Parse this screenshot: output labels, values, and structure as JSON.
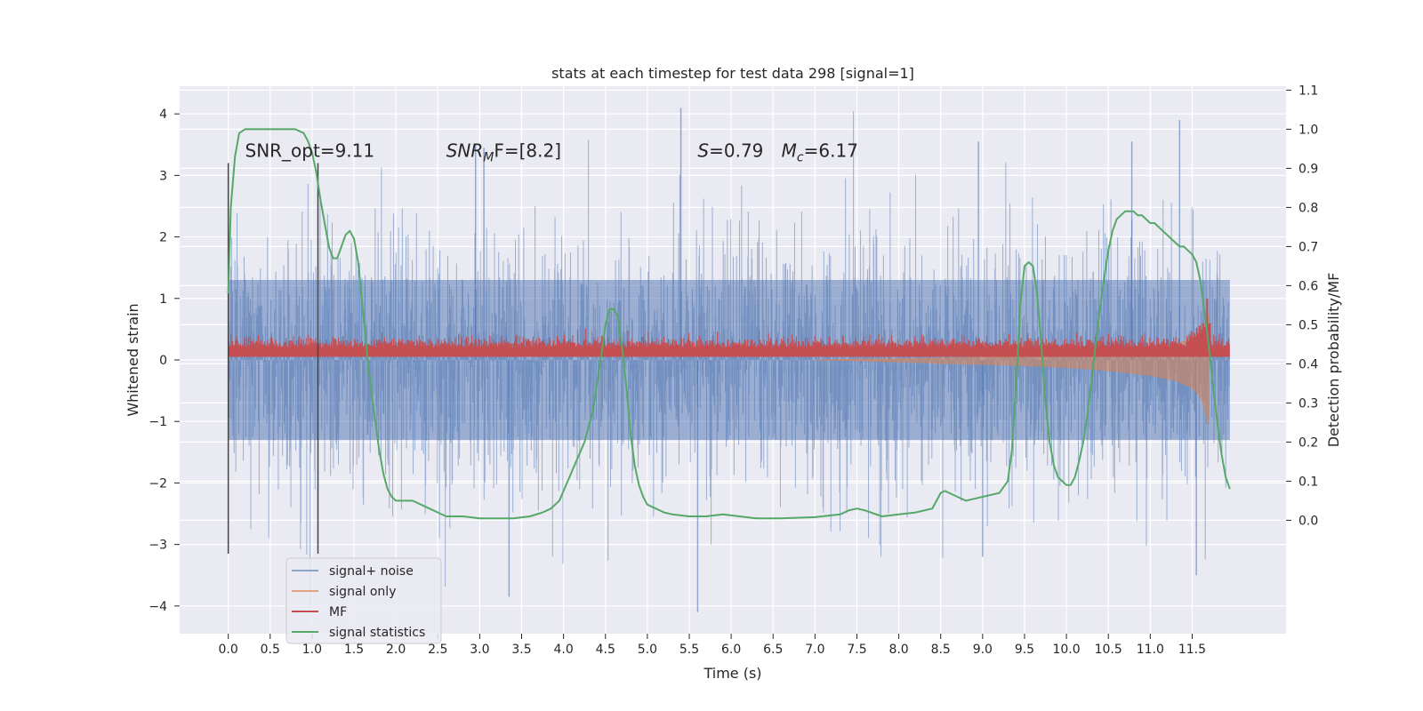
{
  "chart_data": {
    "type": "line",
    "title": "stats at each timestep for test data 298 [signal=1]",
    "xlabel": "Time (s)",
    "ylabel": "Whitened strain",
    "ylabel_right": "Detection probability/MF",
    "xlim": [
      -0.58,
      12.62
    ],
    "ylim": [
      -4.45,
      4.45
    ],
    "ylim_right": [
      -0.29,
      1.11
    ],
    "x_ticks": [
      "0.0",
      "0.5",
      "1.0",
      "1.5",
      "2.0",
      "2.5",
      "3.0",
      "3.5",
      "4.0",
      "4.5",
      "5.0",
      "5.5",
      "6.0",
      "6.5",
      "7.0",
      "7.5",
      "8.0",
      "8.5",
      "9.0",
      "9.5",
      "10.0",
      "10.5",
      "11.0",
      "11.5"
    ],
    "y_ticks": [
      "−4",
      "−3",
      "−2",
      "−1",
      "0",
      "1",
      "2",
      "3",
      "4"
    ],
    "y_ticks_right": [
      "0.0",
      "0.1",
      "0.2",
      "0.3",
      "0.4",
      "0.5",
      "0.6",
      "0.7",
      "0.8",
      "0.9",
      "1.0",
      "1.1"
    ],
    "grid": true,
    "legend_position": "lower-left",
    "background": "#eaeaf2",
    "colors": {
      "noise": "#4c72b0",
      "signal_only": "#dd8452",
      "mf": "#c44e52",
      "statistics": "#55a868",
      "marker": "#444444"
    },
    "annotations": [
      {
        "text": "SNR_opt=9.11",
        "x": 0.2
      },
      {
        "text": "SNR",
        "sub": "M",
        "tail": "F=[8.2]",
        "x": 2.6
      },
      {
        "text": "S",
        "tail": "=0.79",
        "x": 5.6
      },
      {
        "text": "M",
        "sub": "c",
        "tail": "=6.17",
        "x": 6.6
      }
    ],
    "annotation_y": 3.3,
    "vertical_markers": [
      {
        "x": 0.0,
        "y_range": [
          -3.15,
          3.2
        ]
      },
      {
        "x": 1.07,
        "y_range": [
          -3.15,
          3.2
        ]
      }
    ],
    "series": [
      {
        "name": "signal+ noise",
        "style": "dense-noise",
        "x_range": [
          0.0,
          11.95
        ],
        "band": [
          -1.3,
          1.3
        ],
        "spikes_up_max": [
          3.5,
          4.1
        ],
        "spikes_down_min": [
          -3.8,
          -4.1
        ]
      },
      {
        "name": "signal only",
        "style": "chirp-envelope",
        "x": [
          7.0,
          7.5,
          8.0,
          8.5,
          9.0,
          9.5,
          10.0,
          10.5,
          11.0,
          11.3,
          11.5,
          11.6,
          11.65,
          11.7
        ],
        "upper": [
          0.0,
          0.01,
          0.02,
          0.03,
          0.04,
          0.06,
          0.08,
          0.12,
          0.18,
          0.25,
          0.35,
          0.45,
          0.6,
          0.75
        ],
        "lower": [
          0.0,
          -0.01,
          -0.03,
          -0.05,
          -0.07,
          -0.09,
          -0.12,
          -0.17,
          -0.25,
          -0.33,
          -0.45,
          -0.6,
          -0.8,
          -1.05
        ]
      },
      {
        "name": "MF",
        "style": "noisy-band",
        "x_range": [
          0.0,
          11.95
        ],
        "base": 0.05,
        "mean": 0.2,
        "peak": {
          "x": 11.68,
          "y": 1.0
        }
      },
      {
        "name": "signal statistics",
        "axis": "right",
        "x": [
          0.0,
          0.03,
          0.08,
          0.13,
          0.2,
          0.3,
          0.4,
          0.5,
          0.6,
          0.7,
          0.8,
          0.9,
          0.95,
          1.0,
          1.05,
          1.1,
          1.15,
          1.2,
          1.25,
          1.3,
          1.35,
          1.4,
          1.45,
          1.5,
          1.55,
          1.6,
          1.65,
          1.7,
          1.75,
          1.8,
          1.85,
          1.9,
          1.95,
          2.0,
          2.1,
          2.2,
          2.3,
          2.4,
          2.5,
          2.6,
          2.8,
          3.0,
          3.2,
          3.4,
          3.6,
          3.75,
          3.85,
          3.95,
          4.05,
          4.15,
          4.25,
          4.35,
          4.4,
          4.45,
          4.5,
          4.55,
          4.6,
          4.65,
          4.7,
          4.75,
          4.8,
          4.85,
          4.9,
          4.95,
          5.0,
          5.1,
          5.2,
          5.3,
          5.5,
          5.7,
          5.9,
          6.1,
          6.3,
          6.6,
          7.0,
          7.3,
          7.4,
          7.5,
          7.6,
          7.8,
          8.0,
          8.2,
          8.4,
          8.45,
          8.5,
          8.55,
          8.6,
          8.7,
          8.8,
          8.9,
          9.0,
          9.1,
          9.2,
          9.3,
          9.35,
          9.4,
          9.45,
          9.5,
          9.55,
          9.6,
          9.65,
          9.7,
          9.75,
          9.8,
          9.85,
          9.9,
          9.95,
          10.0,
          10.05,
          10.1,
          10.15,
          10.2,
          10.25,
          10.3,
          10.35,
          10.4,
          10.45,
          10.5,
          10.55,
          10.6,
          10.65,
          10.7,
          10.75,
          10.8,
          10.85,
          10.9,
          10.95,
          11.0,
          11.05,
          11.1,
          11.15,
          11.2,
          11.25,
          11.3,
          11.35,
          11.4,
          11.45,
          11.5,
          11.55,
          11.6,
          11.65,
          11.7,
          11.75,
          11.8,
          11.85,
          11.9,
          11.95
        ],
        "values": [
          0.58,
          0.8,
          0.93,
          0.99,
          1.0,
          1.0,
          1.0,
          1.0,
          1.0,
          1.0,
          1.0,
          0.99,
          0.97,
          0.94,
          0.89,
          0.82,
          0.76,
          0.7,
          0.67,
          0.67,
          0.7,
          0.73,
          0.74,
          0.72,
          0.66,
          0.55,
          0.44,
          0.34,
          0.26,
          0.18,
          0.12,
          0.08,
          0.06,
          0.05,
          0.05,
          0.05,
          0.04,
          0.03,
          0.02,
          0.01,
          0.01,
          0.005,
          0.005,
          0.005,
          0.01,
          0.02,
          0.03,
          0.05,
          0.1,
          0.15,
          0.2,
          0.28,
          0.35,
          0.42,
          0.5,
          0.54,
          0.54,
          0.52,
          0.44,
          0.34,
          0.22,
          0.14,
          0.09,
          0.06,
          0.04,
          0.03,
          0.02,
          0.015,
          0.01,
          0.01,
          0.015,
          0.01,
          0.005,
          0.005,
          0.008,
          0.015,
          0.025,
          0.03,
          0.025,
          0.01,
          0.015,
          0.02,
          0.03,
          0.05,
          0.07,
          0.075,
          0.07,
          0.06,
          0.05,
          0.055,
          0.06,
          0.065,
          0.07,
          0.1,
          0.18,
          0.35,
          0.55,
          0.65,
          0.66,
          0.65,
          0.58,
          0.45,
          0.3,
          0.2,
          0.14,
          0.11,
          0.1,
          0.09,
          0.09,
          0.11,
          0.15,
          0.2,
          0.27,
          0.36,
          0.45,
          0.54,
          0.62,
          0.69,
          0.74,
          0.77,
          0.78,
          0.79,
          0.79,
          0.79,
          0.78,
          0.78,
          0.77,
          0.76,
          0.76,
          0.75,
          0.74,
          0.73,
          0.72,
          0.71,
          0.7,
          0.7,
          0.69,
          0.68,
          0.66,
          0.61,
          0.53,
          0.44,
          0.34,
          0.25,
          0.17,
          0.11,
          0.08
        ]
      }
    ]
  }
}
